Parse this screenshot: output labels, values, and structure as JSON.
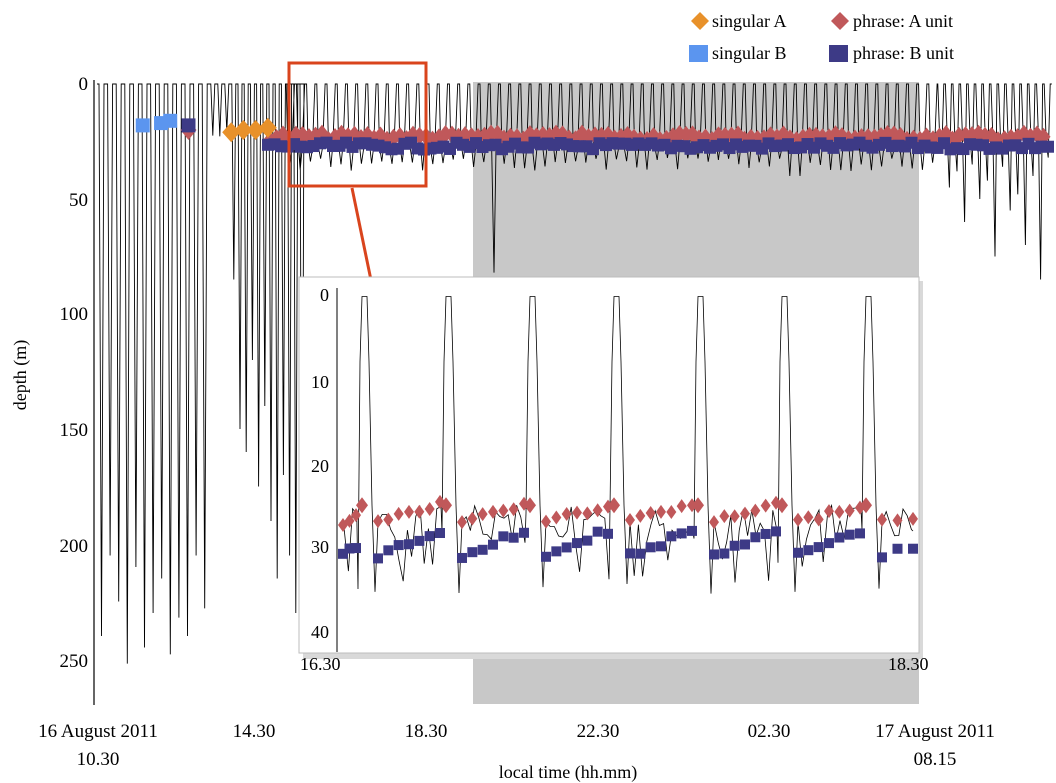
{
  "chart_data": {
    "type": "line",
    "xlabel": "local time (hh.mm)",
    "ylabel": "depth (m)",
    "y_axis": "inverted",
    "ylim": [
      0,
      270
    ],
    "y_ticks": [
      "0",
      "50",
      "100",
      "150",
      "200",
      "250"
    ],
    "x_ticks": [
      {
        "line1": "16 August 2011",
        "line2": "10.30"
      },
      {
        "line1": "14.30",
        "line2": ""
      },
      {
        "line1": "18.30",
        "line2": ""
      },
      {
        "line1": "22.30",
        "line2": ""
      },
      {
        "line1": "02.30",
        "line2": ""
      },
      {
        "line1": "17 August 2011",
        "line2": "08.15"
      }
    ],
    "legend_position": "top-right",
    "legend": [
      {
        "label": "singular A",
        "marker": "diamond",
        "color": "#e8912a"
      },
      {
        "label": "phrase: A unit",
        "marker": "diamond",
        "color": "#c0585a"
      },
      {
        "label": "singular B",
        "marker": "square",
        "color": "#5b95ef"
      },
      {
        "label": "phrase: B unit",
        "marker": "square",
        "color": "#3d3a86"
      }
    ],
    "shaded_region": {
      "description": "night period",
      "color": "#c8c8c8"
    },
    "highlight_box_color": "#d9441d",
    "main_series": {
      "singular_B_points": [
        {
          "h": 1.5,
          "depth": 18
        },
        {
          "h": 2.1,
          "depth": 17
        },
        {
          "h": 2.4,
          "depth": 16
        }
      ],
      "singular_A_points": [
        {
          "h": 4.4,
          "depth": 21
        },
        {
          "h": 4.8,
          "depth": 20
        },
        {
          "h": 5.2,
          "depth": 20
        },
        {
          "h": 5.6,
          "depth": 19
        }
      ],
      "phrase_depth_A": 23,
      "phrase_depth_B": 27
    },
    "inset": {
      "x_start_label": "16.30",
      "x_end_label": "18.30",
      "y_ticks": [
        "0",
        "10",
        "20",
        "30",
        "40"
      ],
      "ylim": [
        0,
        42
      ],
      "surfacings": 7,
      "dive_depth_range": [
        24,
        34
      ],
      "phrase_A_depth": 26,
      "phrase_B_depth": 29
    }
  }
}
